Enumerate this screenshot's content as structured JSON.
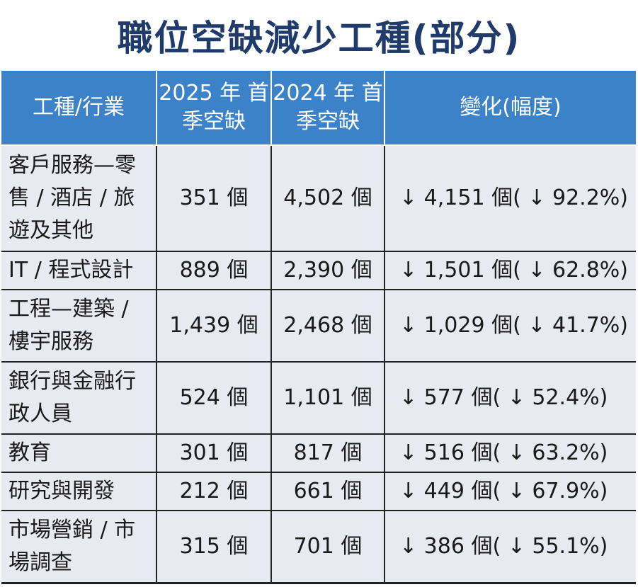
{
  "chart_data": {
    "type": "table",
    "title": "職位空缺減少工種(部分)",
    "columns": [
      "工種/行業",
      "2025 年 首季空缺",
      "2024 年 首季空缺",
      "變化(幅度)"
    ],
    "rows": [
      {
        "category": "客戶服務—零售 / 酒店 / 旅遊及其他",
        "v2025": "351 個",
        "v2024": "4,502 個",
        "change": "↓ 4,151 個( ↓ 92.2%)"
      },
      {
        "category": "IT / 程式設計",
        "v2025": "889 個",
        "v2024": "2,390 個",
        "change": "↓ 1,501 個( ↓ 62.8%)"
      },
      {
        "category": "工程—建築 / 樓宇服務",
        "v2025": "1,439 個",
        "v2024": "2,468 個",
        "change": "↓ 1,029 個( ↓ 41.7%)"
      },
      {
        "category": "銀行與金融行政人員",
        "v2025": "524 個",
        "v2024": "1,101 個",
        "change": "↓ 577 個( ↓ 52.4%)"
      },
      {
        "category": "教育",
        "v2025": "301 個",
        "v2024": "817 個",
        "change": "↓ 516 個( ↓ 63.2%)"
      },
      {
        "category": "研究與開發",
        "v2025": "212 個",
        "v2024": "661 個",
        "change": "↓ 449 個( ↓ 67.9%)"
      },
      {
        "category": "市場營銷 / 市場調查",
        "v2025": "315 個",
        "v2024": "701 個",
        "change": "↓ 386 個( ↓ 55.1%)"
      }
    ]
  }
}
